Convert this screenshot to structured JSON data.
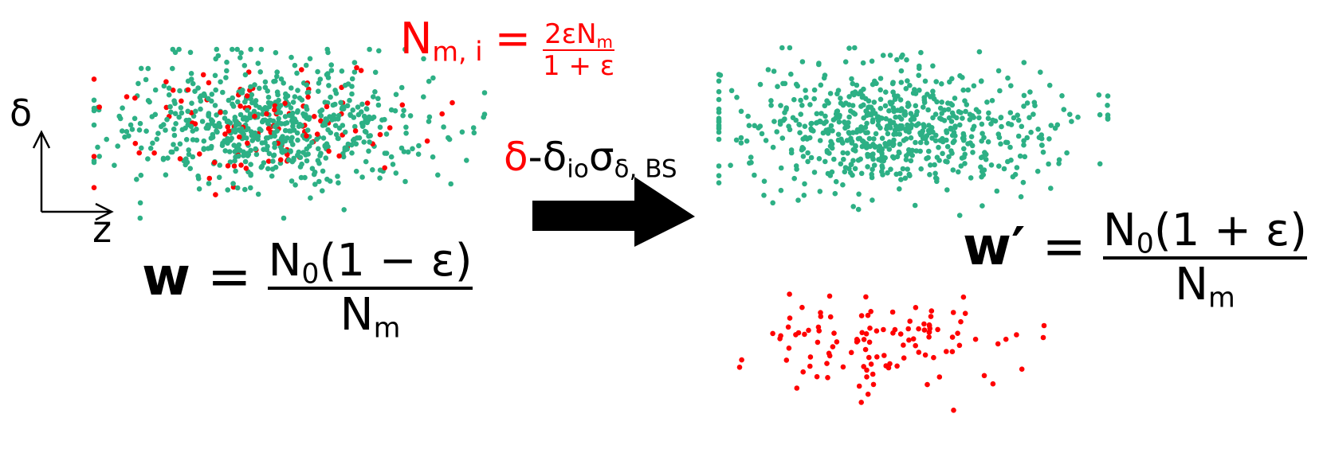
{
  "colors": {
    "inside": "#2db085",
    "outside": "#ff0000",
    "ink": "#000000"
  },
  "axes": {
    "vertical_label": "δ",
    "horizontal_label": "z"
  },
  "top_eq": {
    "lhs": "N",
    "lhs_sub": "m, i",
    "equals": "=",
    "num": "2εN",
    "num_sub": "m",
    "den": "1 + ε"
  },
  "cut_label": {
    "delta": "δ",
    "rest": "-δ",
    "rest_sub": "io",
    "sigma": "σ",
    "sigma_sub": "δ, BS"
  },
  "left_eq": {
    "lhs": "w",
    "equals": "=",
    "num": "N",
    "num_sub": "0",
    "num_tail": "(1 − ε)",
    "den": "N",
    "den_sub": "m"
  },
  "right_eq": {
    "lhs": "w′",
    "equals": "=",
    "num": "N",
    "num_sub": "0",
    "num_tail": "(1 + ε)",
    "den": "N",
    "den_sub": "m"
  },
  "icons": {
    "arrow": "right-arrow-icon",
    "axes": "axes-icon"
  }
}
